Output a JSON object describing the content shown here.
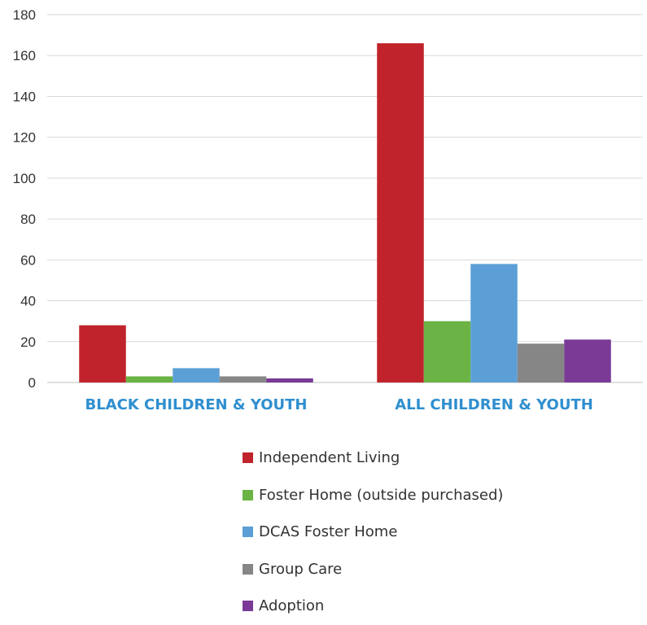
{
  "chart_data": {
    "type": "bar",
    "categories": [
      "BLACK CHILDREN & YOUTH",
      "ALL CHILDREN & YOUTH"
    ],
    "series": [
      {
        "name": "Independent Living",
        "color": "#c0232b",
        "values": [
          28,
          166
        ]
      },
      {
        "name": "Foster Home (outside purchased)",
        "color": "#6ab344",
        "values": [
          3,
          30
        ]
      },
      {
        "name": "DCAS Foster Home",
        "color": "#5b9fd6",
        "values": [
          7,
          58
        ]
      },
      {
        "name": "Group Care",
        "color": "#868686",
        "values": [
          3,
          19
        ]
      },
      {
        "name": "Adoption",
        "color": "#7a3a96",
        "values": [
          2,
          21
        ]
      }
    ],
    "yticks": [
      "0",
      "20",
      "40",
      "60",
      "80",
      "100",
      "120",
      "140",
      "160",
      "180"
    ],
    "ylim": [
      0,
      180
    ],
    "grid": true,
    "legend_position": "bottom",
    "category_label_color": "#2f8fcf"
  }
}
